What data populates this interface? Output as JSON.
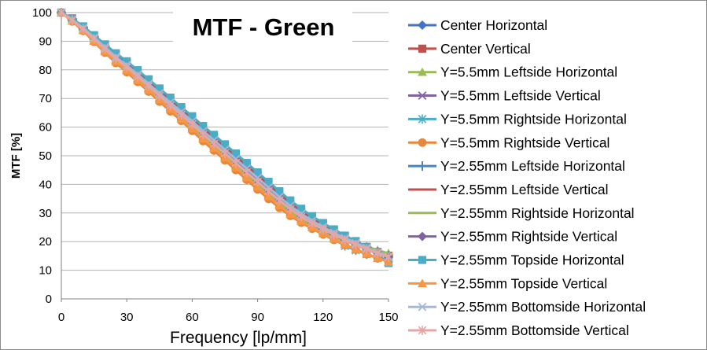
{
  "chart_data": {
    "type": "line",
    "title": "MTF - Green",
    "xlabel": "Frequency [lp/mm]",
    "ylabel": "MTF [%]",
    "xlim": [
      0,
      150
    ],
    "ylim": [
      0,
      100
    ],
    "xticks": [
      0,
      30,
      60,
      90,
      120,
      150
    ],
    "yticks": [
      0,
      10,
      20,
      30,
      40,
      50,
      60,
      70,
      80,
      90,
      100
    ],
    "grid": "horizontal",
    "legend_position": "right",
    "x": [
      0,
      5,
      10,
      15,
      20,
      25,
      30,
      35,
      40,
      45,
      50,
      55,
      60,
      65,
      70,
      75,
      80,
      85,
      90,
      95,
      100,
      105,
      110,
      115,
      120,
      125,
      130,
      135,
      140,
      145,
      150
    ],
    "series": [
      {
        "name": "Center Horizontal",
        "color": "#4472c4",
        "marker": "diamond",
        "values": [
          100,
          97.5,
          94.5,
          91.2,
          87.8,
          84.4,
          81.6,
          78.4,
          75.1,
          71.7,
          68.5,
          65.1,
          61.8,
          58.3,
          55.2,
          51.9,
          48.6,
          45.3,
          41.9,
          38.6,
          35.3,
          32.1,
          29.5,
          27.2,
          25.1,
          23.1,
          21.2,
          19.6,
          17.8,
          16.2,
          14.9
        ]
      },
      {
        "name": "Center Vertical",
        "color": "#c0504d",
        "marker": "square",
        "values": [
          100,
          98.0,
          95.0,
          91.8,
          88.5,
          85.2,
          82.4,
          79.3,
          76.0,
          72.7,
          69.5,
          66.2,
          63.0,
          59.6,
          56.4,
          53.1,
          49.9,
          46.6,
          43.4,
          40.2,
          36.9,
          33.6,
          30.6,
          28.1,
          25.9,
          23.8,
          21.7,
          19.9,
          18.1,
          16.4,
          15.1
        ]
      },
      {
        "name": "Y=5.5mm Leftside Horizontal",
        "color": "#9bbb59",
        "marker": "triangle",
        "values": [
          100,
          97.2,
          94.0,
          90.4,
          86.8,
          83.4,
          80.3,
          77.0,
          73.7,
          70.3,
          67.0,
          63.7,
          60.2,
          56.7,
          53.4,
          50.0,
          46.6,
          43.2,
          39.8,
          36.5,
          33.3,
          30.4,
          27.9,
          25.8,
          23.9,
          22.2,
          20.8,
          19.6,
          18.4,
          17.0,
          15.9
        ]
      },
      {
        "name": "Y=5.5mm Leftside Vertical",
        "color": "#8064a2",
        "marker": "x",
        "values": [
          100,
          97.4,
          94.3,
          90.9,
          87.4,
          84.0,
          81.0,
          77.7,
          74.4,
          71.0,
          67.8,
          64.4,
          61.1,
          57.6,
          54.3,
          51.0,
          47.7,
          44.3,
          41.0,
          37.7,
          34.4,
          31.3,
          28.6,
          26.3,
          24.2,
          22.3,
          20.5,
          19.0,
          17.5,
          16.0,
          14.8
        ]
      },
      {
        "name": "Y=5.5mm Rightside Horizontal",
        "color": "#4bacc6",
        "marker": "star",
        "values": [
          100,
          97.3,
          94.2,
          90.7,
          87.1,
          83.7,
          80.6,
          77.3,
          74.0,
          70.6,
          67.3,
          64.0,
          60.6,
          57.1,
          53.8,
          50.5,
          47.1,
          43.8,
          40.4,
          37.1,
          33.9,
          30.8,
          28.1,
          25.8,
          23.4,
          21.0,
          18.5,
          17.0,
          15.6,
          14.3,
          13.0
        ]
      },
      {
        "name": "Y=5.5mm Rightside Vertical",
        "color": "#e8873a",
        "marker": "circle",
        "values": [
          100,
          96.9,
          93.6,
          89.8,
          86.0,
          82.4,
          79.2,
          75.8,
          72.4,
          68.9,
          65.5,
          62.2,
          58.7,
          55.1,
          51.8,
          48.4,
          45.0,
          41.6,
          38.2,
          34.9,
          31.8,
          29.0,
          26.6,
          24.5,
          22.5,
          20.6,
          18.8,
          17.2,
          15.6,
          14.2,
          13.0
        ]
      },
      {
        "name": "Y=2.55mm Leftside Horizontal",
        "color": "#4f81bd",
        "marker": "plus",
        "values": [
          100,
          97.6,
          94.7,
          91.4,
          88.0,
          84.7,
          81.8,
          78.6,
          75.3,
          72.0,
          68.8,
          65.4,
          62.1,
          58.6,
          55.5,
          52.2,
          48.9,
          45.6,
          42.2,
          38.9,
          35.6,
          32.5,
          29.8,
          27.4,
          25.3,
          23.3,
          21.4,
          19.7,
          18.0,
          16.4,
          15.0
        ]
      },
      {
        "name": "Y=2.55mm Leftside Vertical",
        "color": "#c0504d",
        "marker": "dash",
        "values": [
          100,
          97.7,
          94.8,
          91.6,
          88.2,
          84.9,
          82.0,
          78.8,
          75.5,
          72.2,
          69.0,
          65.7,
          62.4,
          58.9,
          55.8,
          52.5,
          49.2,
          45.9,
          42.6,
          39.3,
          36.0,
          32.8,
          30.0,
          27.6,
          25.5,
          23.5,
          21.5,
          19.8,
          18.1,
          16.5,
          15.2
        ]
      },
      {
        "name": "Y=2.55mm Rightside Horizontal",
        "color": "#9bbb59",
        "marker": "dash",
        "values": [
          100,
          97.3,
          94.1,
          90.6,
          87.0,
          83.6,
          80.5,
          77.2,
          73.9,
          70.5,
          67.2,
          63.9,
          60.5,
          57.0,
          53.7,
          50.3,
          47.0,
          43.6,
          40.2,
          36.9,
          33.7,
          30.7,
          28.0,
          25.4,
          22.9,
          21.6,
          20.4,
          19.2,
          18.0,
          16.6,
          15.4
        ]
      },
      {
        "name": "Y=2.55mm Rightside Vertical",
        "color": "#8064a2",
        "marker": "diamond",
        "values": [
          100,
          97.4,
          94.4,
          91.0,
          87.5,
          84.1,
          81.1,
          77.8,
          74.5,
          71.2,
          67.9,
          64.6,
          61.2,
          57.8,
          54.5,
          51.2,
          47.8,
          44.5,
          41.2,
          37.9,
          34.6,
          31.5,
          28.8,
          26.5,
          24.3,
          22.3,
          20.5,
          18.9,
          17.3,
          15.8,
          14.5
        ]
      },
      {
        "name": "Y=2.55mm Topside Horizontal",
        "color": "#4bacc6",
        "marker": "square",
        "values": [
          100,
          97.9,
          95.2,
          92.1,
          88.9,
          85.8,
          83.0,
          79.9,
          76.7,
          73.5,
          70.3,
          67.0,
          63.8,
          60.4,
          57.3,
          54.0,
          50.8,
          47.5,
          44.2,
          40.9,
          37.6,
          34.4,
          31.5,
          28.9,
          26.5,
          24.3,
          22.1,
          20.2,
          18.2,
          15.5,
          12.5
        ]
      },
      {
        "name": "Y=2.55mm Topside Vertical",
        "color": "#f79646",
        "marker": "triangle",
        "values": [
          100,
          97.1,
          93.8,
          90.1,
          86.4,
          82.9,
          79.8,
          76.4,
          73.0,
          69.6,
          66.3,
          62.9,
          59.5,
          56.0,
          52.7,
          49.3,
          45.9,
          42.5,
          39.1,
          35.8,
          32.6,
          29.7,
          27.2,
          25.0,
          22.9,
          21.0,
          19.1,
          17.4,
          15.8,
          14.3,
          12.9
        ]
      },
      {
        "name": "Y=2.55mm Bottomside Horizontal",
        "color": "#a5b8d8",
        "marker": "x",
        "values": [
          100,
          97.5,
          94.6,
          91.3,
          87.9,
          84.5,
          81.6,
          78.4,
          75.1,
          71.8,
          68.6,
          65.3,
          62.0,
          58.6,
          55.4,
          52.1,
          48.8,
          45.5,
          42.2,
          38.9,
          35.6,
          32.5,
          29.7,
          27.3,
          25.1,
          23.1,
          21.2,
          19.5,
          17.8,
          16.2,
          14.8
        ]
      },
      {
        "name": "Y=2.55mm Bottomside Vertical",
        "color": "#e6a6a4",
        "marker": "star",
        "values": [
          100,
          97.3,
          94.3,
          90.8,
          87.3,
          83.9,
          80.9,
          77.6,
          74.3,
          70.9,
          67.6,
          64.3,
          61.0,
          57.5,
          54.2,
          50.9,
          47.5,
          44.2,
          40.9,
          37.6,
          34.4,
          31.4,
          28.7,
          26.4,
          24.3,
          22.4,
          20.6,
          19.0,
          17.4,
          15.9,
          14.6
        ]
      }
    ]
  }
}
